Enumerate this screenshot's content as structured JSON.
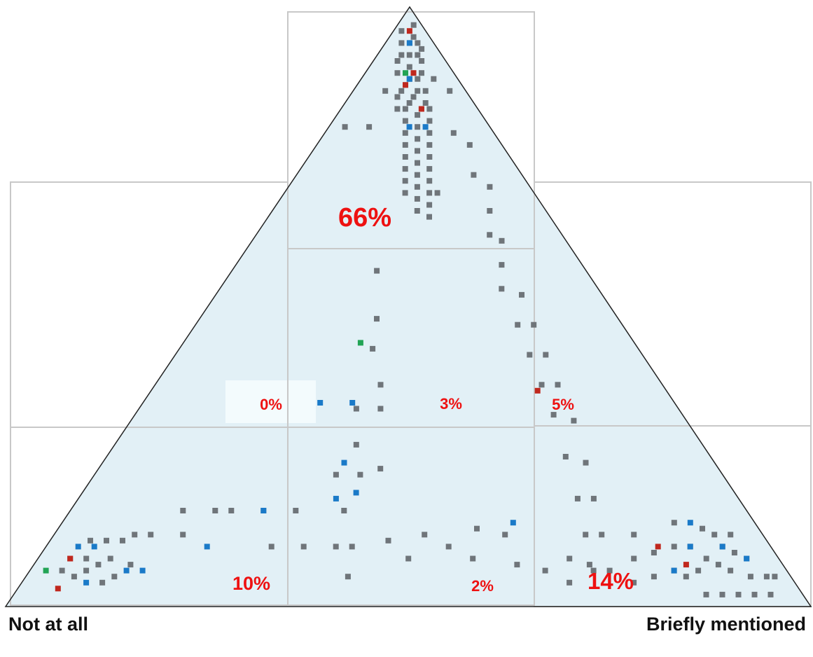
{
  "colors": {
    "triangle_fill": "#e2f0f6",
    "triangle_stroke": "#222222",
    "grid": "#c8c8c8",
    "percent_text": "#ee1111",
    "point_default": "#6f757a",
    "point_blue": "#1a7ac8",
    "point_red": "#c0281e",
    "point_green": "#22a455"
  },
  "corner_labels": {
    "left": "Not at all",
    "right": "Briefly mentioned",
    "top": ""
  },
  "chart_data": {
    "type": "scatter",
    "title": "",
    "xlabel": "",
    "ylabel": "",
    "coordinate_system": "ternary (left corner, right corner, top corner)",
    "regions": [
      {
        "name": "top",
        "label": "66%",
        "value": 66
      },
      {
        "name": "middle-left",
        "label": "0%",
        "value": 0
      },
      {
        "name": "middle-center",
        "label": "3%",
        "value": 3
      },
      {
        "name": "middle-right",
        "label": "5%",
        "value": 5
      },
      {
        "name": "bottom-left",
        "label": "10%",
        "value": 10
      },
      {
        "name": "bottom-center",
        "label": "2%",
        "value": 2
      },
      {
        "name": "bottom-right",
        "label": "14%",
        "value": 14
      }
    ],
    "series": [
      {
        "color": "gray",
        "points": [
          [
            0.02,
            0.03,
            0.95
          ],
          [
            0.01,
            0.02,
            0.97
          ],
          [
            0.03,
            0.01,
            0.96
          ],
          [
            0.02,
            0.04,
            0.94
          ],
          [
            0.04,
            0.02,
            0.94
          ],
          [
            0.03,
            0.03,
            0.94
          ],
          [
            0.02,
            0.05,
            0.93
          ],
          [
            0.05,
            0.03,
            0.92
          ],
          [
            0.03,
            0.05,
            0.92
          ],
          [
            0.04,
            0.04,
            0.92
          ],
          [
            0.06,
            0.03,
            0.91
          ],
          [
            0.03,
            0.06,
            0.91
          ],
          [
            0.05,
            0.05,
            0.9
          ],
          [
            0.07,
            0.04,
            0.89
          ],
          [
            0.04,
            0.07,
            0.89
          ],
          [
            0.06,
            0.06,
            0.88
          ],
          [
            0.05,
            0.07,
            0.88
          ],
          [
            0.07,
            0.06,
            0.87
          ],
          [
            0.06,
            0.08,
            0.86
          ],
          [
            0.08,
            0.06,
            0.86
          ],
          [
            0.07,
            0.08,
            0.85
          ],
          [
            0.05,
            0.09,
            0.86
          ],
          [
            0.09,
            0.06,
            0.85
          ],
          [
            0.06,
            0.1,
            0.84
          ],
          [
            0.08,
            0.08,
            0.84
          ],
          [
            0.07,
            0.1,
            0.83
          ],
          [
            0.09,
            0.08,
            0.83
          ],
          [
            0.06,
            0.11,
            0.83
          ],
          [
            0.1,
            0.07,
            0.83
          ],
          [
            0.08,
            0.1,
            0.82
          ],
          [
            0.07,
            0.12,
            0.81
          ],
          [
            0.1,
            0.09,
            0.81
          ],
          [
            0.09,
            0.11,
            0.8
          ],
          [
            0.08,
            0.13,
            0.79
          ],
          [
            0.11,
            0.1,
            0.79
          ],
          [
            0.1,
            0.12,
            0.78
          ],
          [
            0.09,
            0.14,
            0.77
          ],
          [
            0.12,
            0.11,
            0.77
          ],
          [
            0.11,
            0.13,
            0.76
          ],
          [
            0.1,
            0.15,
            0.75
          ],
          [
            0.13,
            0.12,
            0.75
          ],
          [
            0.12,
            0.14,
            0.74
          ],
          [
            0.11,
            0.16,
            0.73
          ],
          [
            0.14,
            0.13,
            0.73
          ],
          [
            0.13,
            0.15,
            0.72
          ],
          [
            0.12,
            0.17,
            0.71
          ],
          [
            0.15,
            0.14,
            0.71
          ],
          [
            0.14,
            0.16,
            0.7
          ],
          [
            0.13,
            0.18,
            0.69
          ],
          [
            0.16,
            0.15,
            0.69
          ],
          [
            0.15,
            0.17,
            0.68
          ],
          [
            0.14,
            0.19,
            0.67
          ],
          [
            0.12,
            0.19,
            0.69
          ],
          [
            0.16,
            0.18,
            0.66
          ],
          [
            0.15,
            0.2,
            0.65
          ],
          [
            0.05,
            0.16,
            0.79
          ],
          [
            0.04,
            0.19,
            0.77
          ],
          [
            0.06,
            0.22,
            0.72
          ],
          [
            0.05,
            0.25,
            0.7
          ],
          [
            0.07,
            0.27,
            0.66
          ],
          [
            0.09,
            0.29,
            0.62
          ],
          [
            0.08,
            0.31,
            0.61
          ],
          [
            0.1,
            0.33,
            0.57
          ],
          [
            0.12,
            0.35,
            0.53
          ],
          [
            0.1,
            0.38,
            0.52
          ],
          [
            0.13,
            0.4,
            0.47
          ],
          [
            0.11,
            0.42,
            0.47
          ],
          [
            0.14,
            0.44,
            0.42
          ],
          [
            0.12,
            0.46,
            0.42
          ],
          [
            0.15,
            0.48,
            0.37
          ],
          [
            0.13,
            0.5,
            0.37
          ],
          [
            0.16,
            0.52,
            0.32
          ],
          [
            0.14,
            0.55,
            0.31
          ],
          [
            0.18,
            0.57,
            0.25
          ],
          [
            0.16,
            0.6,
            0.24
          ],
          [
            0.2,
            0.62,
            0.18
          ],
          [
            0.18,
            0.64,
            0.18
          ],
          [
            0.22,
            0.66,
            0.12
          ],
          [
            0.2,
            0.68,
            0.12
          ],
          [
            0.24,
            0.69,
            0.07
          ],
          [
            0.26,
            0.18,
            0.56
          ],
          [
            0.3,
            0.22,
            0.48
          ],
          [
            0.33,
            0.24,
            0.43
          ],
          [
            0.35,
            0.28,
            0.37
          ],
          [
            0.37,
            0.3,
            0.33
          ],
          [
            0.4,
            0.27,
            0.33
          ],
          [
            0.43,
            0.3,
            0.27
          ],
          [
            0.45,
            0.33,
            0.22
          ],
          [
            0.42,
            0.35,
            0.23
          ],
          [
            0.48,
            0.3,
            0.22
          ],
          [
            0.5,
            0.34,
            0.16
          ],
          [
            0.52,
            0.38,
            0.1
          ],
          [
            0.55,
            0.4,
            0.05
          ],
          [
            0.47,
            0.42,
            0.11
          ],
          [
            0.46,
            0.46,
            0.08
          ],
          [
            0.88,
            0.04,
            0.08
          ],
          [
            0.86,
            0.06,
            0.08
          ],
          [
            0.84,
            0.05,
            0.11
          ],
          [
            0.85,
            0.08,
            0.07
          ],
          [
            0.83,
            0.09,
            0.08
          ],
          [
            0.87,
            0.07,
            0.06
          ],
          [
            0.82,
            0.07,
            0.11
          ],
          [
            0.8,
            0.09,
            0.11
          ],
          [
            0.86,
            0.1,
            0.04
          ],
          [
            0.84,
            0.11,
            0.05
          ],
          [
            0.81,
            0.12,
            0.07
          ],
          [
            0.89,
            0.06,
            0.05
          ],
          [
            0.9,
            0.04,
            0.06
          ],
          [
            0.78,
            0.1,
            0.12
          ],
          [
            0.76,
            0.12,
            0.12
          ],
          [
            0.72,
            0.16,
            0.12
          ],
          [
            0.7,
            0.14,
            0.16
          ],
          [
            0.66,
            0.18,
            0.16
          ],
          [
            0.64,
            0.2,
            0.16
          ],
          [
            0.6,
            0.24,
            0.16
          ],
          [
            0.56,
            0.28,
            0.16
          ],
          [
            0.62,
            0.28,
            0.1
          ],
          [
            0.58,
            0.32,
            0.1
          ],
          [
            0.54,
            0.36,
            0.1
          ],
          [
            0.05,
            0.86,
            0.09
          ],
          [
            0.04,
            0.88,
            0.08
          ],
          [
            0.06,
            0.84,
            0.1
          ],
          [
            0.07,
            0.87,
            0.06
          ],
          [
            0.05,
            0.9,
            0.05
          ],
          [
            0.08,
            0.85,
            0.07
          ],
          [
            0.06,
            0.82,
            0.12
          ],
          [
            0.09,
            0.83,
            0.08
          ],
          [
            0.04,
            0.84,
            0.12
          ],
          [
            0.07,
            0.8,
            0.13
          ],
          [
            0.1,
            0.8,
            0.1
          ],
          [
            0.03,
            0.92,
            0.05
          ],
          [
            0.02,
            0.93,
            0.05
          ],
          [
            0.04,
            0.94,
            0.02
          ],
          [
            0.06,
            0.92,
            0.02
          ],
          [
            0.08,
            0.9,
            0.02
          ],
          [
            0.1,
            0.88,
            0.02
          ],
          [
            0.12,
            0.86,
            0.02
          ],
          [
            0.11,
            0.83,
            0.06
          ],
          [
            0.13,
            0.82,
            0.05
          ],
          [
            0.14,
            0.8,
            0.06
          ],
          [
            0.12,
            0.78,
            0.1
          ],
          [
            0.1,
            0.76,
            0.14
          ],
          [
            0.15,
            0.76,
            0.09
          ],
          [
            0.17,
            0.78,
            0.05
          ],
          [
            0.18,
            0.74,
            0.08
          ],
          [
            0.2,
            0.76,
            0.04
          ],
          [
            0.22,
            0.72,
            0.06
          ],
          [
            0.16,
            0.72,
            0.12
          ],
          [
            0.24,
            0.7,
            0.06
          ],
          [
            0.26,
            0.66,
            0.08
          ],
          [
            0.28,
            0.68,
            0.04
          ],
          [
            0.3,
            0.64,
            0.06
          ],
          [
            0.33,
            0.6,
            0.07
          ],
          [
            0.32,
            0.56,
            0.12
          ],
          [
            0.35,
            0.52,
            0.13
          ],
          [
            0.38,
            0.54,
            0.08
          ],
          [
            0.4,
            0.5,
            0.1
          ],
          [
            0.42,
            0.46,
            0.12
          ],
          [
            0.03,
            0.09,
            0.88
          ],
          [
            0.1,
            0.04,
            0.86
          ],
          [
            0.02,
            0.12,
            0.86
          ],
          [
            0.15,
            0.05,
            0.8
          ],
          [
            0.18,
            0.02,
            0.8
          ]
        ]
      },
      {
        "color": "blue",
        "points": [
          [
            0.03,
            0.03,
            0.94
          ],
          [
            0.06,
            0.06,
            0.88
          ],
          [
            0.1,
            0.1,
            0.8
          ],
          [
            0.08,
            0.12,
            0.8
          ],
          [
            0.4,
            0.26,
            0.34
          ],
          [
            0.46,
            0.3,
            0.24
          ],
          [
            0.44,
            0.22,
            0.34
          ],
          [
            0.47,
            0.34,
            0.19
          ],
          [
            0.6,
            0.24,
            0.16
          ],
          [
            0.7,
            0.2,
            0.1
          ],
          [
            0.84,
            0.06,
            0.1
          ],
          [
            0.86,
            0.04,
            0.1
          ],
          [
            0.82,
            0.12,
            0.06
          ],
          [
            0.88,
            0.08,
            0.04
          ],
          [
            0.8,
            0.14,
            0.06
          ],
          [
            0.08,
            0.78,
            0.14
          ],
          [
            0.1,
            0.8,
            0.1
          ],
          [
            0.06,
            0.84,
            0.1
          ],
          [
            0.04,
            0.88,
            0.08
          ],
          [
            0.14,
            0.8,
            0.06
          ],
          [
            0.3,
            0.56,
            0.14
          ],
          [
            0.5,
            0.32,
            0.18
          ]
        ]
      },
      {
        "color": "red",
        "points": [
          [
            0.02,
            0.02,
            0.96
          ],
          [
            0.07,
            0.06,
            0.87
          ],
          [
            0.05,
            0.06,
            0.89
          ],
          [
            0.07,
            0.1,
            0.83
          ],
          [
            0.16,
            0.48,
            0.36
          ],
          [
            0.88,
            0.04,
            0.08
          ],
          [
            0.92,
            0.05,
            0.03
          ],
          [
            0.12,
            0.81,
            0.07
          ],
          [
            0.14,
            0.76,
            0.1
          ]
        ]
      },
      {
        "color": "green",
        "points": [
          [
            0.06,
            0.05,
            0.89
          ],
          [
            0.34,
            0.22,
            0.44
          ],
          [
            0.92,
            0.02,
            0.06
          ]
        ]
      }
    ]
  }
}
